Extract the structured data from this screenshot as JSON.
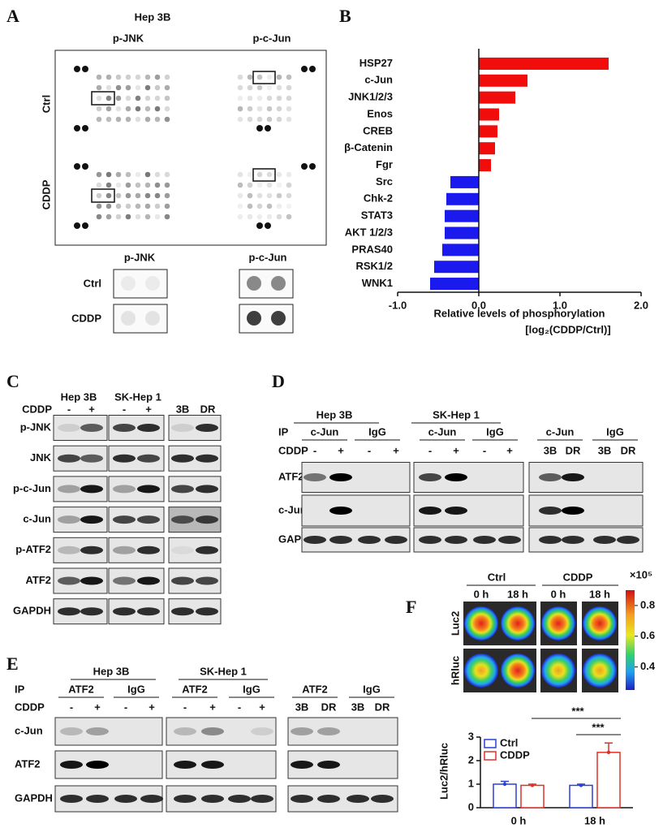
{
  "panel_labels": [
    "A",
    "B",
    "C",
    "D",
    "E",
    "F"
  ],
  "panel_a": {
    "title": "Hep 3B",
    "array_columns": [
      "p-JNK",
      "p-c-Jun"
    ],
    "array_rows": [
      "Ctrl",
      "CDDP"
    ],
    "zoom_columns": [
      "p-JNK",
      "p-c-Jun"
    ],
    "zoom_rows": [
      "Ctrl",
      "CDDP"
    ]
  },
  "chart_data": [
    {
      "type": "bar",
      "orientation": "horizontal",
      "categories": [
        "HSP27",
        "c-Jun",
        "JNK1/2/3",
        "Enos",
        "CREB",
        "β-Catenin",
        "Fgr",
        "Src",
        "Chk-2",
        "STAT3",
        "AKT 1/2/3",
        "PRAS40",
        "RSK1/2",
        "WNK1"
      ],
      "values": [
        1.6,
        0.6,
        0.45,
        0.25,
        0.23,
        0.2,
        0.15,
        -0.35,
        -0.4,
        -0.42,
        -0.42,
        -0.45,
        -0.55,
        -0.6
      ],
      "colors": [
        "#f20d0d",
        "#f20d0d",
        "#f20d0d",
        "#f20d0d",
        "#f20d0d",
        "#f20d0d",
        "#f20d0d",
        "#1a1aef",
        "#1a1aef",
        "#1a1aef",
        "#1a1aef",
        "#1a1aef",
        "#1a1aef",
        "#1a1aef"
      ],
      "xlabel": "Relative levels of phosphorylation",
      "xlabel_line2": "[log₂(CDDP/Ctrl)]",
      "xlim": [
        -1,
        2
      ],
      "xticks": [
        {
          "value": -1,
          "label": "-1.0"
        },
        {
          "value": 0,
          "label": "0.0"
        },
        {
          "value": 1,
          "label": "1.0"
        },
        {
          "value": 2,
          "label": "2.0"
        }
      ]
    },
    {
      "type": "bar",
      "categories": [
        "0 h",
        "18 h"
      ],
      "series": [
        {
          "name": "Ctrl",
          "color": "#2b3fd6",
          "values": [
            1.0,
            0.95
          ],
          "errors": [
            0.12,
            0.05
          ]
        },
        {
          "name": "CDDP",
          "color": "#e0302a",
          "values": [
            0.95,
            2.35
          ],
          "errors": [
            0.05,
            0.4
          ]
        }
      ],
      "ylabel": "Luc2/hRluc",
      "ylim": [
        0,
        3
      ],
      "yticks": [
        0,
        1,
        2,
        3
      ],
      "annotations": [
        "***",
        "***"
      ]
    }
  ],
  "panel_c": {
    "cell_lines": [
      "Hep 3B",
      "SK-Hep 1"
    ],
    "treatment": "CDDP",
    "signs": [
      "-",
      "+",
      "-",
      "+"
    ],
    "groups": [
      "3B",
      "DR"
    ],
    "rows": [
      "p-JNK",
      "JNK",
      "p-c-Jun",
      "c-Jun",
      "p-ATF2",
      "ATF2",
      "GAPDH"
    ]
  },
  "panel_d": {
    "cell_lines": [
      "Hep 3B",
      "SK-Hep 1"
    ],
    "ip_label": "IP",
    "ip": [
      "c-Jun",
      "IgG",
      "c-Jun",
      "IgG",
      "c-Jun",
      "IgG"
    ],
    "treatment": "CDDP",
    "signs": [
      "-",
      "+",
      "-",
      "+",
      "-",
      "+",
      "-",
      "+"
    ],
    "groups": [
      "3B",
      "DR",
      "3B",
      "DR"
    ],
    "rows": [
      "ATF2",
      "c-Jun",
      "GAPDH"
    ]
  },
  "panel_e": {
    "cell_lines": [
      "Hep 3B",
      "SK-Hep 1"
    ],
    "ip_label": "IP",
    "ip": [
      "ATF2",
      "IgG",
      "ATF2",
      "IgG",
      "ATF2",
      "IgG"
    ],
    "treatment": "CDDP",
    "signs": [
      "-",
      "+",
      "-",
      "+",
      "-",
      "+",
      "-",
      "+"
    ],
    "groups": [
      "3B",
      "DR",
      "3B",
      "DR"
    ],
    "rows": [
      "c-Jun",
      "ATF2",
      "GAPDH"
    ]
  },
  "panel_f": {
    "conditions": [
      "Ctrl",
      "CDDP"
    ],
    "times": [
      "0 h",
      "18 h",
      "0 h",
      "18 h"
    ],
    "reporters": [
      "Luc2",
      "hRluc"
    ],
    "colorbar_scale": "×10⁵",
    "colorbar_lim": [
      0.25,
      0.9
    ],
    "colorbar_ticks": [
      0.4,
      0.6,
      0.8
    ]
  }
}
